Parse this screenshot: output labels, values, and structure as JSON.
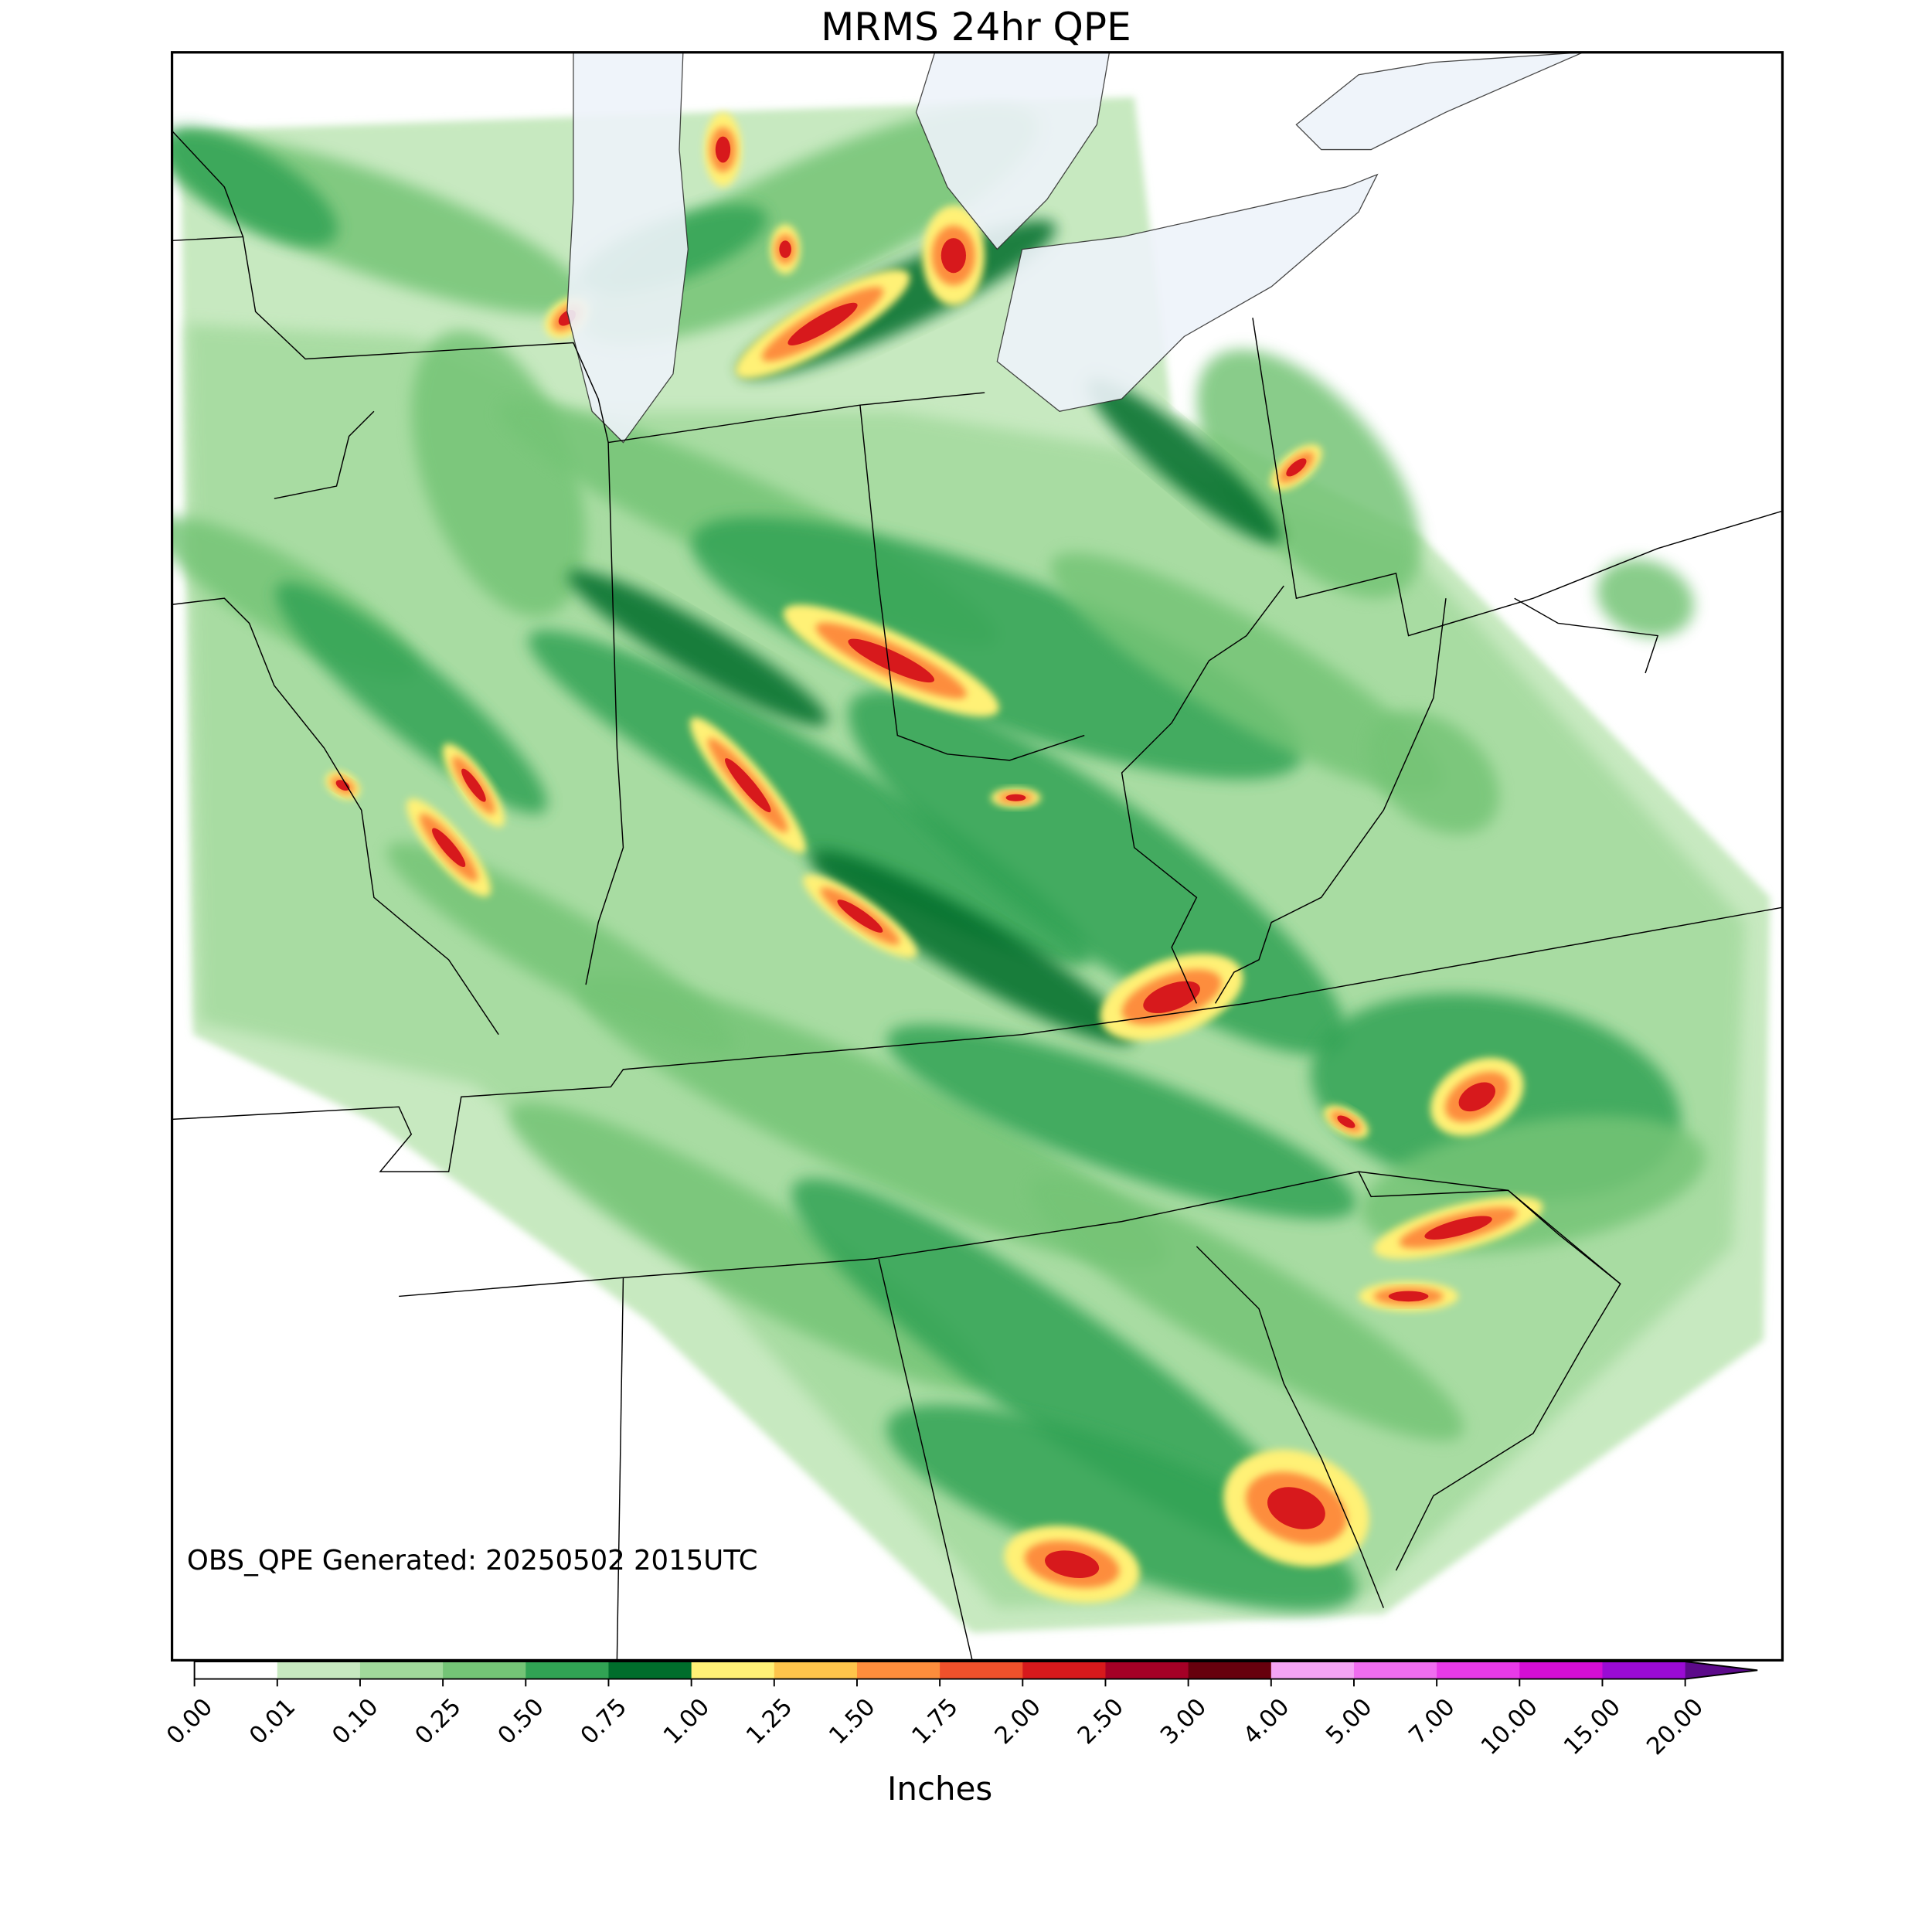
{
  "title": "MRMS 24hr QPE",
  "annotation": "OBS_QPE Generated: 20250502 2015UTC",
  "colorbar": {
    "label": "Inches",
    "ticks": [
      {
        "value": 0,
        "label": "0.00"
      },
      {
        "value": 0.01,
        "label": "0.01"
      },
      {
        "value": 0.1,
        "label": "0.10"
      },
      {
        "value": 0.25,
        "label": "0.25"
      },
      {
        "value": 0.5,
        "label": "0.50"
      },
      {
        "value": 0.75,
        "label": "0.75"
      },
      {
        "value": 1,
        "label": "1.00"
      },
      {
        "value": 1.25,
        "label": "1.25"
      },
      {
        "value": 1.5,
        "label": "1.50"
      },
      {
        "value": 1.75,
        "label": "1.75"
      },
      {
        "value": 2,
        "label": "2.00"
      },
      {
        "value": 2.5,
        "label": "2.50"
      },
      {
        "value": 3,
        "label": "3.00"
      },
      {
        "value": 4,
        "label": "4.00"
      },
      {
        "value": 5,
        "label": "5.00"
      },
      {
        "value": 7,
        "label": "7.00"
      },
      {
        "value": 10,
        "label": "10.00"
      },
      {
        "value": 15,
        "label": "15.00"
      },
      {
        "value": 20,
        "label": "20.00"
      }
    ],
    "colors": [
      "#ffffff",
      "#c7e9c0",
      "#a1d99b",
      "#74c476",
      "#31a354",
      "#006d2c",
      "#fff176",
      "#fdc44b",
      "#fd8d3c",
      "#f0512b",
      "#d7191c",
      "#a50026",
      "#67000d",
      "#f4a4f4",
      "#f06df0",
      "#e83ae8",
      "#d40ed4",
      "#9a0bd4"
    ],
    "extend_color": "#5c0a8a"
  }
}
